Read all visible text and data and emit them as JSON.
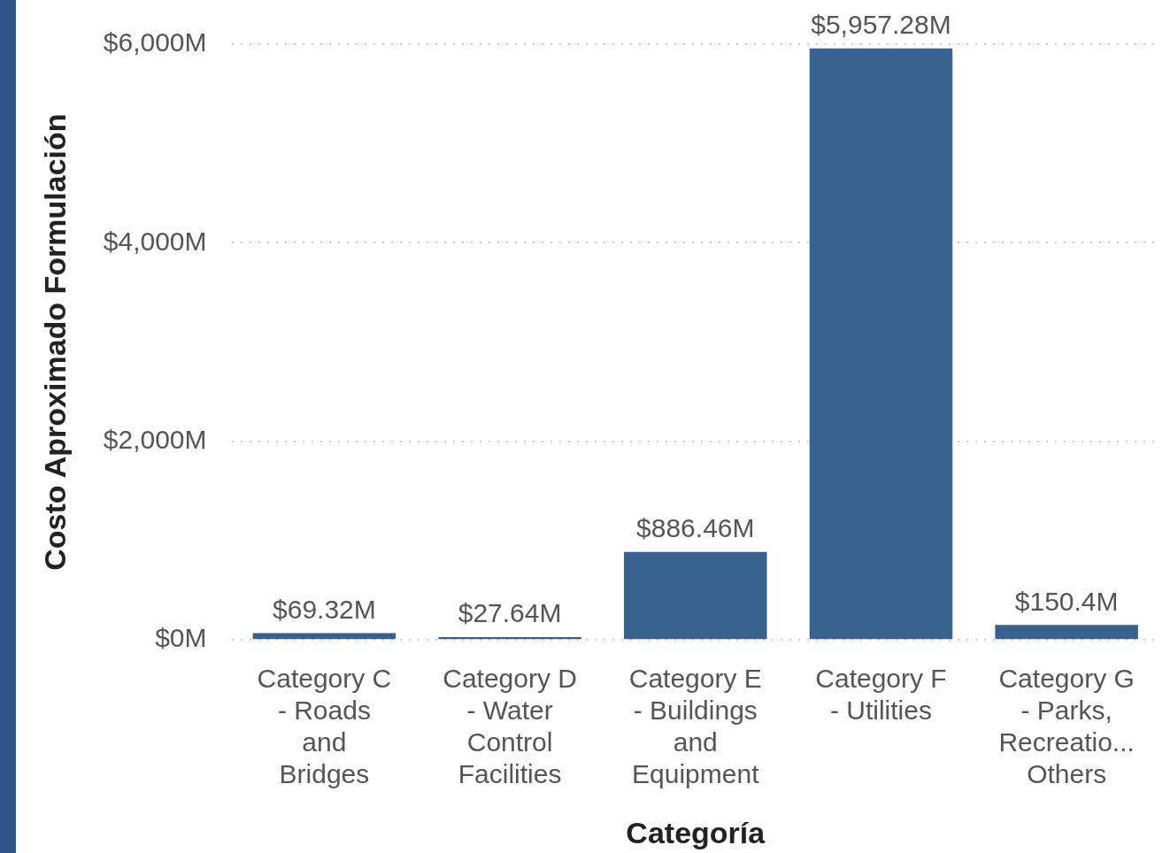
{
  "chart_data": {
    "type": "bar",
    "xlabel": "Categoría",
    "ylabel": "Costo Aproximado Formulación",
    "categories": [
      "Category C - Roads and Bridges",
      "Category D - Water Control Facilities",
      "Category E - Buildings and Equipment",
      "Category F - Utilities",
      "Category G - Parks, Recreatio... Others"
    ],
    "values": [
      69.32,
      27.64,
      886.46,
      5957.28,
      150.4
    ],
    "value_labels": [
      "$69.32M",
      "$27.64M",
      "$886.46M",
      "$5,957.28M",
      "$150.4M"
    ],
    "color": "#37618f",
    "ylim": [
      0,
      6000
    ],
    "yticks": [
      {
        "value": 0,
        "label": "$0M"
      },
      {
        "value": 2000,
        "label": "$2,000M"
      },
      {
        "value": 4000,
        "label": "$4,000M"
      },
      {
        "value": 6000,
        "label": "$6,000M"
      }
    ],
    "grid": "y",
    "legend": false
  }
}
